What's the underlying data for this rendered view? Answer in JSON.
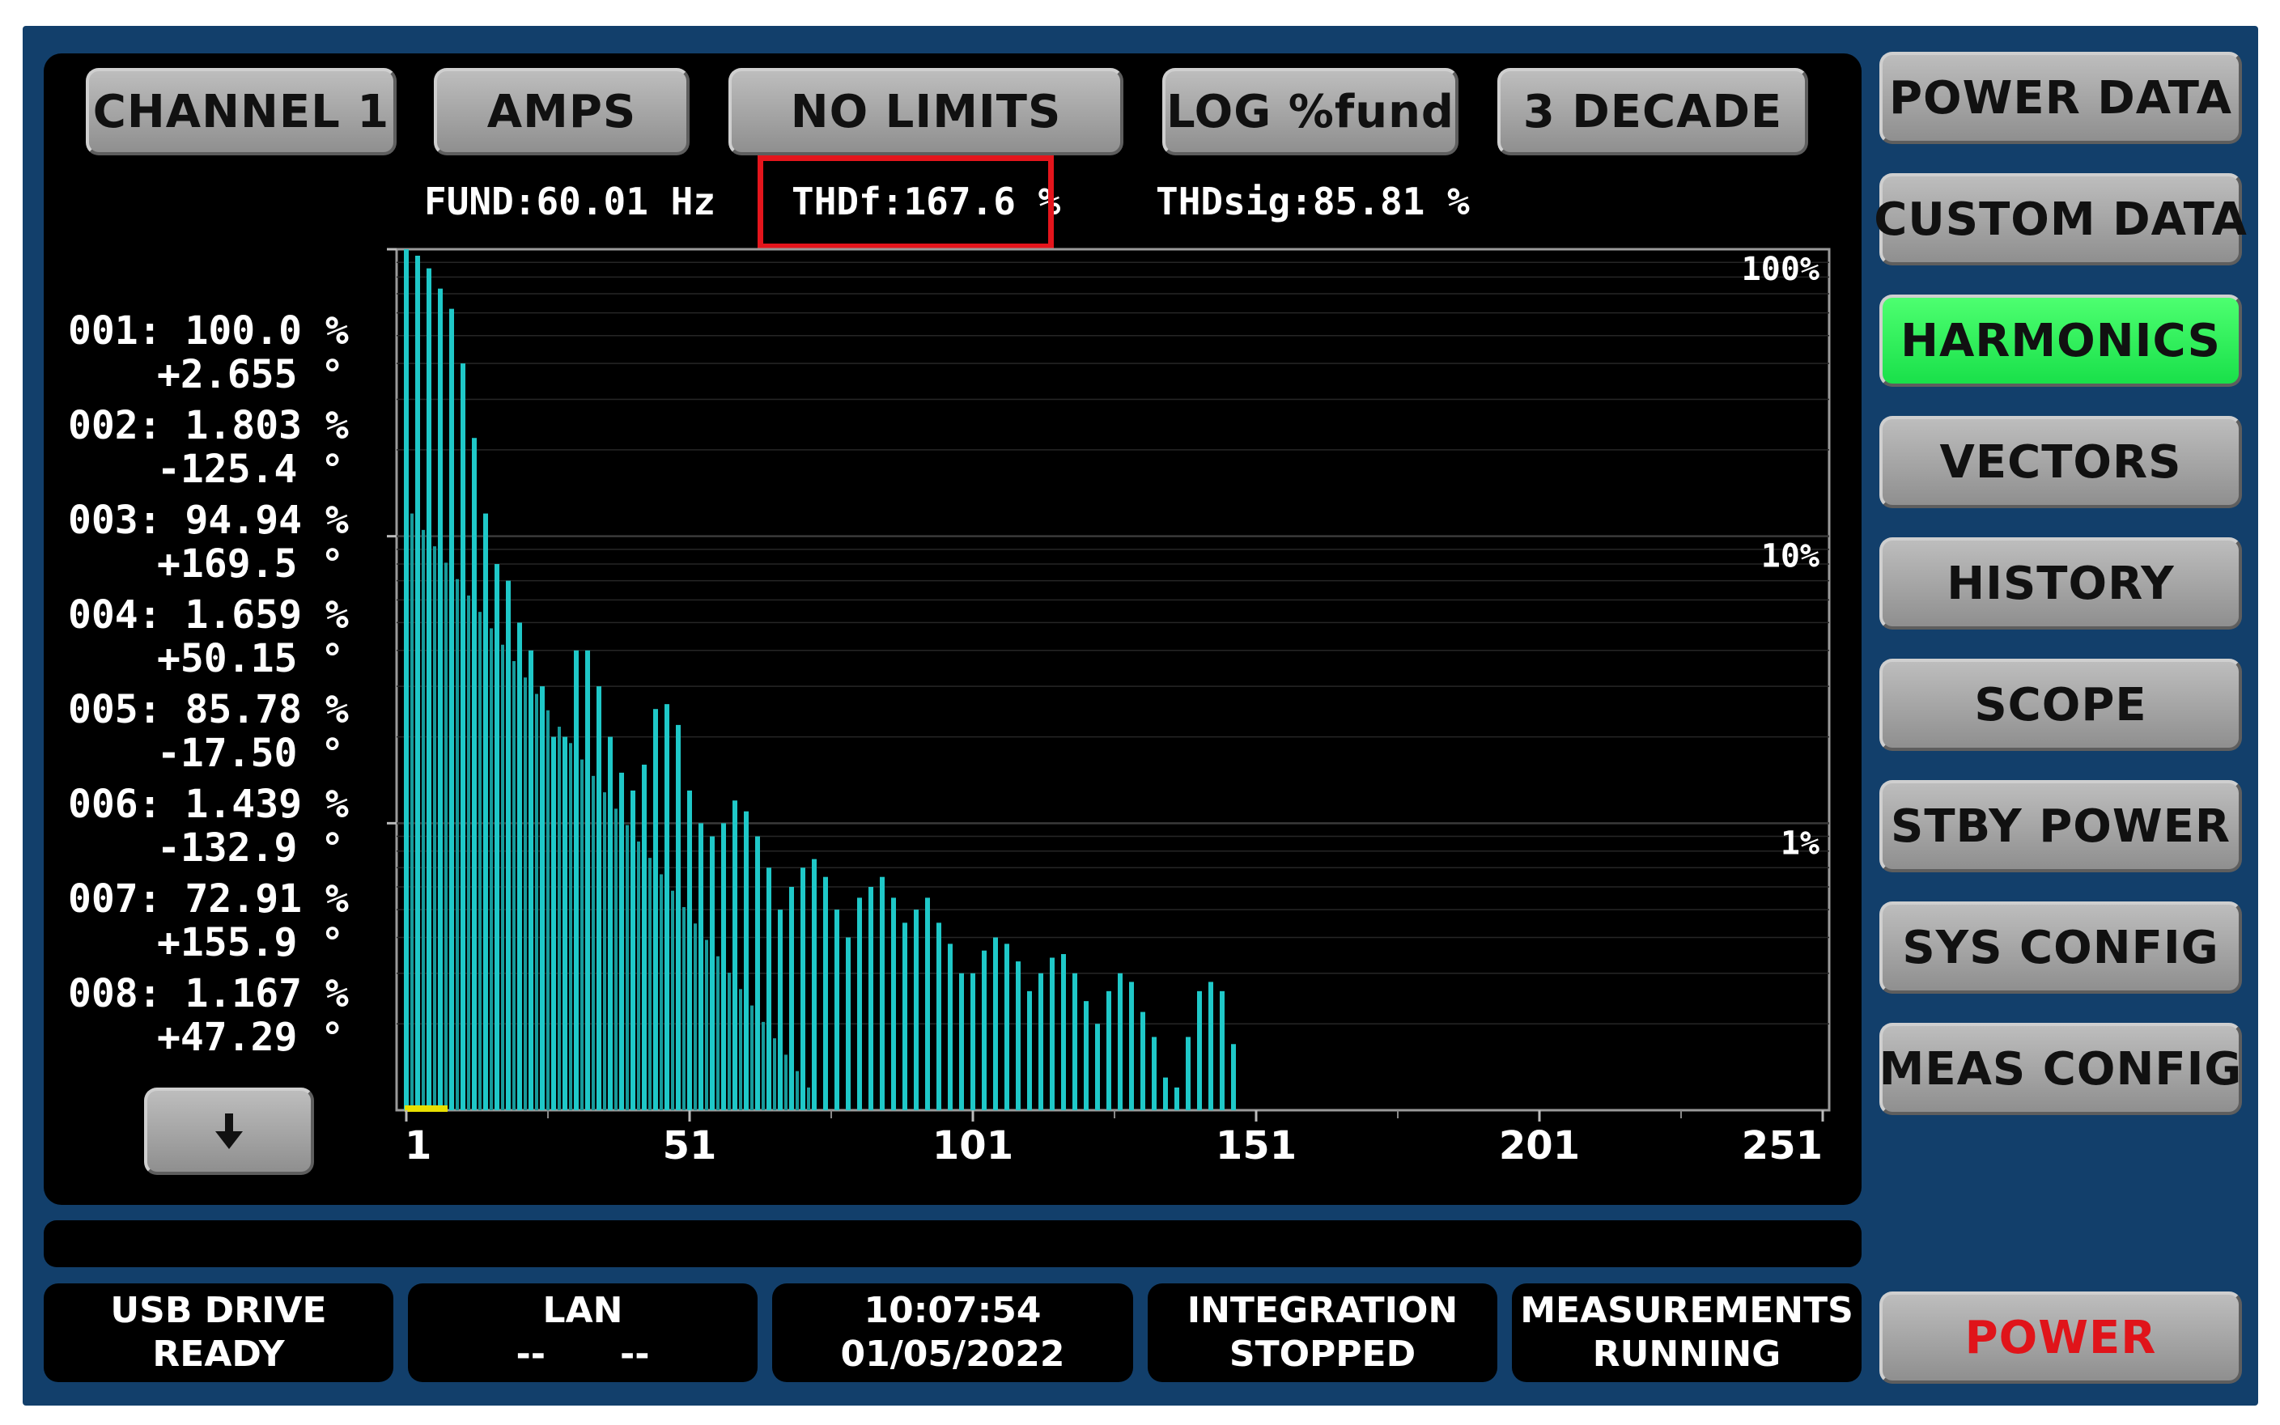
{
  "top_buttons": {
    "channel": "CHANNEL 1",
    "units": "AMPS",
    "limits": "NO LIMITS",
    "scale": "LOG %fund",
    "range": "3 DECADE"
  },
  "readouts": {
    "fund": "FUND:60.01 Hz",
    "thdf": "THDf:167.6 %",
    "thdsig": "THDsig:85.81 %"
  },
  "harmonics_list": [
    {
      "pct": "001: 100.0 %",
      "ang": "+2.655 °"
    },
    {
      "pct": "002: 1.803 %",
      "ang": "-125.4 °"
    },
    {
      "pct": "003: 94.94 %",
      "ang": "+169.5 °"
    },
    {
      "pct": "004: 1.659 %",
      "ang": "+50.15 °"
    },
    {
      "pct": "005: 85.78 %",
      "ang": "-17.50 °"
    },
    {
      "pct": "006: 1.439 %",
      "ang": "-132.9 °"
    },
    {
      "pct": "007: 72.91 %",
      "ang": "+155.9 °"
    },
    {
      "pct": "008: 1.167 %",
      "ang": "+47.29 °"
    }
  ],
  "scroll_down_icon": "down-arrow-icon",
  "side_menu": [
    {
      "label": "POWER DATA",
      "active": false
    },
    {
      "label": "CUSTOM DATA",
      "active": false
    },
    {
      "label": "HARMONICS",
      "active": true
    },
    {
      "label": "VECTORS",
      "active": false
    },
    {
      "label": "HISTORY",
      "active": false
    },
    {
      "label": "SCOPE",
      "active": false
    },
    {
      "label": "STBY POWER",
      "active": false
    },
    {
      "label": "SYS CONFIG",
      "active": false
    },
    {
      "label": "MEAS CONFIG",
      "active": false
    }
  ],
  "power_button": "POWER",
  "status_bar": [
    {
      "line1": "USB DRIVE",
      "line2": "READY"
    },
    {
      "line1": "LAN",
      "line2": "--      --"
    },
    {
      "line1": "10:07:54",
      "line2": "01/05/2022"
    },
    {
      "line1": "INTEGRATION",
      "line2": "STOPPED"
    },
    {
      "line1": "MEASUREMENTS",
      "line2": "RUNNING"
    }
  ],
  "colors": {
    "bar": "#1fc8c8",
    "active_menu": "#22e84f",
    "power_text": "#e0141a",
    "highlight_box": "#e4151c",
    "background_frame": "#123f6b"
  },
  "chart_data": {
    "type": "bar",
    "title": "",
    "xlabel": "",
    "ylabel": "",
    "y_scale": "log",
    "ylim": [
      0.1,
      100
    ],
    "y_tick_labels": [
      "100%",
      "10%",
      "1%"
    ],
    "x_tick_labels": [
      "1",
      "51",
      "101",
      "151",
      "201",
      "251"
    ],
    "xlim": [
      1,
      251
    ],
    "odd_peaks": [
      {
        "h": 1,
        "v": 100
      },
      {
        "h": 3,
        "v": 94.94
      },
      {
        "h": 5,
        "v": 85.78
      },
      {
        "h": 7,
        "v": 72.91
      },
      {
        "h": 9,
        "v": 62
      },
      {
        "h": 11,
        "v": 40
      },
      {
        "h": 13,
        "v": 22
      },
      {
        "h": 15,
        "v": 12
      },
      {
        "h": 17,
        "v": 8
      },
      {
        "h": 19,
        "v": 7
      },
      {
        "h": 21,
        "v": 5
      },
      {
        "h": 23,
        "v": 4
      },
      {
        "h": 25,
        "v": 3
      },
      {
        "h": 27,
        "v": 2
      },
      {
        "h": 29,
        "v": 2
      },
      {
        "h": 31,
        "v": 4
      },
      {
        "h": 33,
        "v": 4
      },
      {
        "h": 35,
        "v": 3
      },
      {
        "h": 37,
        "v": 2
      },
      {
        "h": 39,
        "v": 1.5
      },
      {
        "h": 41,
        "v": 1.3
      },
      {
        "h": 43,
        "v": 1.6
      },
      {
        "h": 45,
        "v": 2.5
      },
      {
        "h": 47,
        "v": 2.6
      },
      {
        "h": 49,
        "v": 2.2
      },
      {
        "h": 51,
        "v": 1.3
      },
      {
        "h": 53,
        "v": 1.0
      },
      {
        "h": 55,
        "v": 0.9
      },
      {
        "h": 57,
        "v": 1.0
      },
      {
        "h": 59,
        "v": 1.2
      },
      {
        "h": 61,
        "v": 1.1
      },
      {
        "h": 63,
        "v": 0.9
      },
      {
        "h": 65,
        "v": 0.7
      },
      {
        "h": 67,
        "v": 0.5
      },
      {
        "h": 69,
        "v": 0.6
      },
      {
        "h": 71,
        "v": 0.7
      },
      {
        "h": 73,
        "v": 0.75
      },
      {
        "h": 75,
        "v": 0.65
      },
      {
        "h": 77,
        "v": 0.5
      },
      {
        "h": 79,
        "v": 0.4
      },
      {
        "h": 81,
        "v": 0.55
      },
      {
        "h": 83,
        "v": 0.6
      },
      {
        "h": 85,
        "v": 0.65
      },
      {
        "h": 87,
        "v": 0.55
      },
      {
        "h": 89,
        "v": 0.45
      },
      {
        "h": 91,
        "v": 0.5
      },
      {
        "h": 93,
        "v": 0.55
      },
      {
        "h": 95,
        "v": 0.45
      },
      {
        "h": 97,
        "v": 0.38
      },
      {
        "h": 99,
        "v": 0.3
      },
      {
        "h": 101,
        "v": 0.3
      },
      {
        "h": 103,
        "v": 0.36
      },
      {
        "h": 105,
        "v": 0.4
      },
      {
        "h": 107,
        "v": 0.38
      },
      {
        "h": 109,
        "v": 0.33
      },
      {
        "h": 111,
        "v": 0.26
      },
      {
        "h": 113,
        "v": 0.3
      },
      {
        "h": 115,
        "v": 0.34
      },
      {
        "h": 117,
        "v": 0.35
      },
      {
        "h": 119,
        "v": 0.3
      },
      {
        "h": 121,
        "v": 0.24
      },
      {
        "h": 123,
        "v": 0.2
      },
      {
        "h": 125,
        "v": 0.26
      },
      {
        "h": 127,
        "v": 0.3
      },
      {
        "h": 129,
        "v": 0.28
      },
      {
        "h": 131,
        "v": 0.22
      },
      {
        "h": 133,
        "v": 0.18
      },
      {
        "h": 135,
        "v": 0.13
      },
      {
        "h": 137,
        "v": 0.12
      },
      {
        "h": 139,
        "v": 0.18
      },
      {
        "h": 141,
        "v": 0.26
      },
      {
        "h": 143,
        "v": 0.28
      },
      {
        "h": 145,
        "v": 0.26
      },
      {
        "h": 147,
        "v": 0.17
      }
    ],
    "even_level_first": 12,
    "even_level_last": 0.12,
    "even_last_harmonic": 72
  }
}
